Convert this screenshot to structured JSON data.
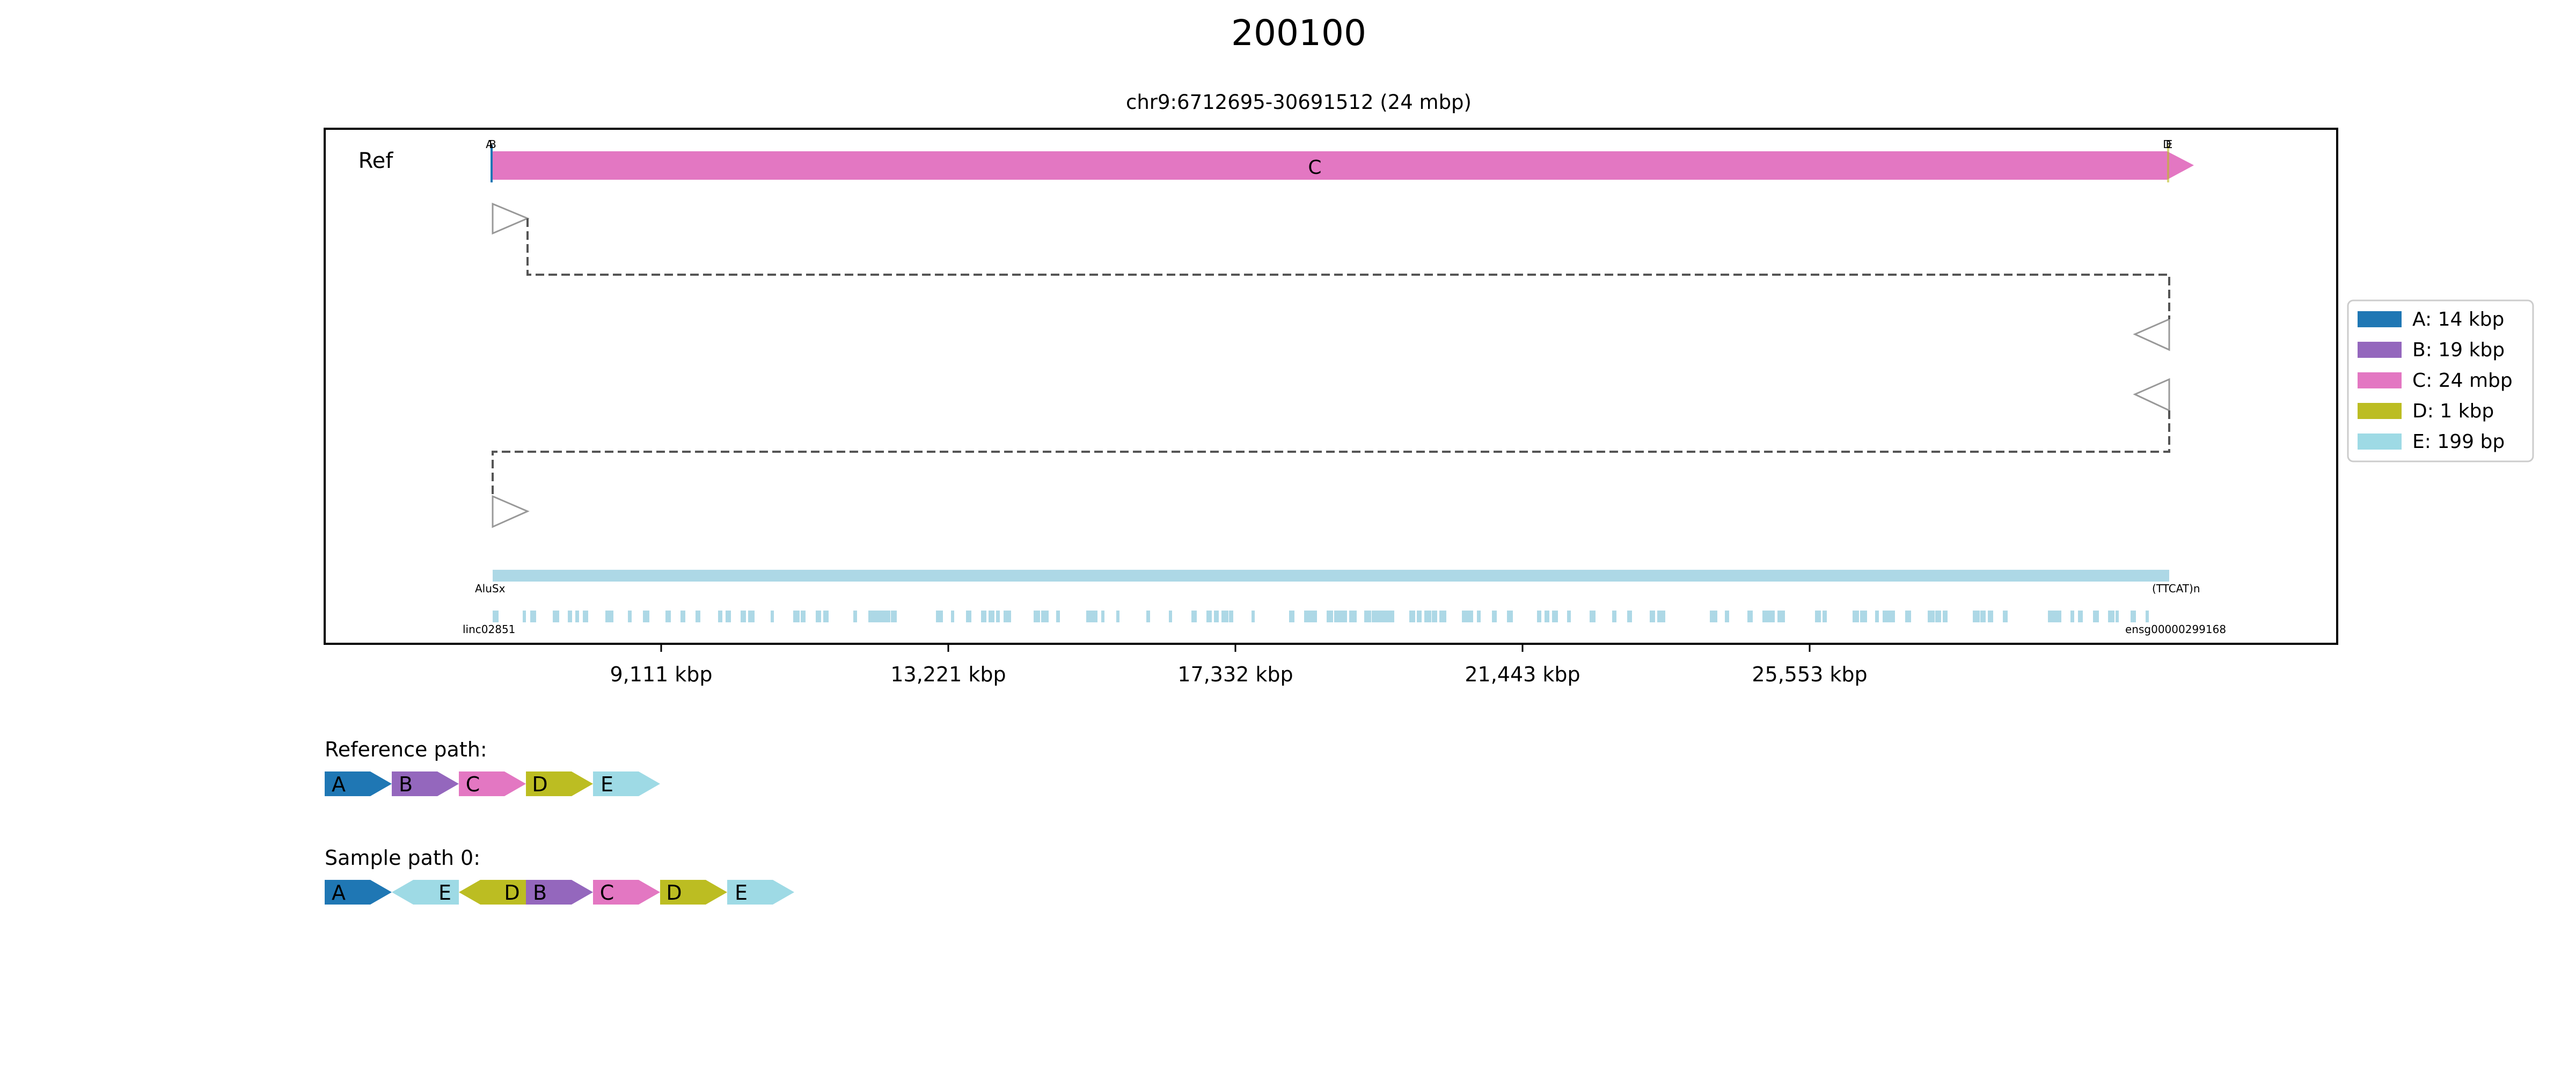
{
  "title": "200100",
  "region_label": "chr9:6712695-30691512 (24 mbp)",
  "track_label": "Ref",
  "x_ticks": [
    "9,111 kbp",
    "13,221 kbp",
    "17,332 kbp",
    "21,443 kbp",
    "25,553 kbp"
  ],
  "legend": [
    {
      "key": "A",
      "label": "A: 14 kbp",
      "color": "#1f77b4"
    },
    {
      "key": "B",
      "label": "B: 19 kbp",
      "color": "#9467bd"
    },
    {
      "key": "C",
      "label": "C: 24 mbp",
      "color": "#e377c2"
    },
    {
      "key": "D",
      "label": "D: 1 kbp",
      "color": "#bcbd22"
    },
    {
      "key": "E",
      "label": "E: 199 bp",
      "color": "#9edae5"
    }
  ],
  "segments_on_ref": {
    "main_label": "C",
    "left_edge_labels": [
      "A",
      "B"
    ],
    "right_edge_labels": [
      "D",
      "E"
    ]
  },
  "reference_path": {
    "label": "Reference path:",
    "items": [
      {
        "key": "A",
        "dir": "+"
      },
      {
        "key": "B",
        "dir": "+"
      },
      {
        "key": "C",
        "dir": "+"
      },
      {
        "key": "D",
        "dir": "+"
      },
      {
        "key": "E",
        "dir": "+"
      }
    ]
  },
  "sample_paths": [
    {
      "label": "Sample path 0:",
      "items": [
        {
          "key": "A",
          "dir": "+"
        },
        {
          "key": "E",
          "dir": "-"
        },
        {
          "key": "D",
          "dir": "-"
        },
        {
          "key": "B",
          "dir": "+"
        },
        {
          "key": "C",
          "dir": "+"
        },
        {
          "key": "D",
          "dir": "+"
        },
        {
          "key": "E",
          "dir": "+"
        }
      ]
    }
  ],
  "repeat_row_label_start": "AluSx",
  "repeat_row_label_end": "(TTCAT)n",
  "gene_row_label_start": "linc02851",
  "gene_row_label_end": "ensg00000299168"
}
